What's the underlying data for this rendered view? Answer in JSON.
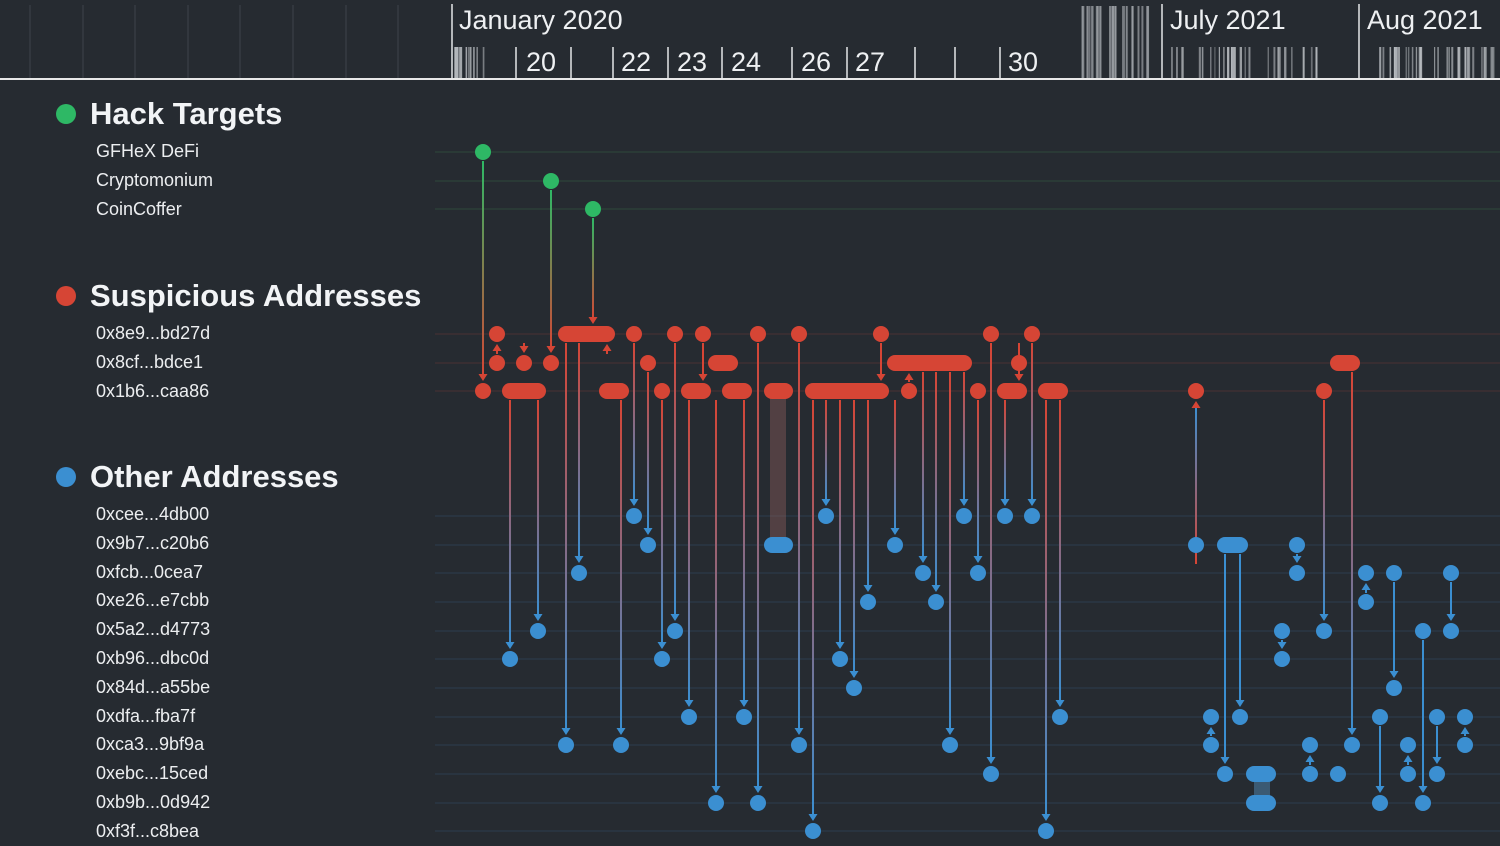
{
  "timeline": {
    "periods": [
      {
        "label": "January 2020"
      },
      {
        "label": "July 2021"
      },
      {
        "label": "Aug 2021"
      }
    ],
    "days": [
      "20",
      "22",
      "23",
      "24",
      "26",
      "27",
      "30"
    ]
  },
  "legend": {
    "groups": [
      {
        "key": "targets",
        "title": "Hack Targets",
        "color": "#2eb865",
        "items": [
          "GFHeX DeFi",
          "Cryptomonium",
          "CoinCoffer"
        ]
      },
      {
        "key": "suspicious",
        "title": "Suspicious Addresses",
        "color": "#d64535",
        "items": [
          "0x8e9...bd27d",
          "0x8cf...bdce1",
          "0x1b6...caa86"
        ]
      },
      {
        "key": "other",
        "title": "Other Addresses",
        "color": "#3b8fd1",
        "items": [
          "0xcee...4db00",
          "0x9b7...c20b6",
          "0xfcb...0cea7",
          "0xe26...e7cbb",
          "0x5a2...d4773",
          "0xb96...dbc0d",
          "0x84d...a55be",
          "0xdfa...fba7f",
          "0xca3...9bf9a",
          "0xebc...15ced",
          "0xb9b...0d942",
          "0xf3f...c8bea"
        ]
      }
    ]
  },
  "colors": {
    "background": "#262b31",
    "target": "#2eb865",
    "suspicious": "#d64535",
    "other": "#3b8fd1"
  }
}
